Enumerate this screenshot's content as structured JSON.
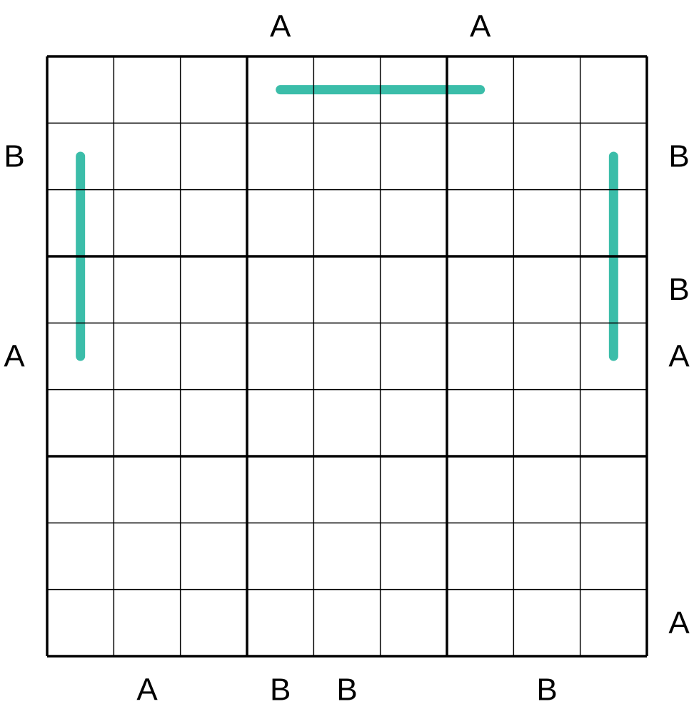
{
  "puzzle": {
    "size": 9,
    "box": 3,
    "line_color": "#3BBDA9",
    "grid_color": "#000000",
    "clues": {
      "top": [
        "",
        "",
        "",
        "A",
        "",
        "",
        "A",
        "",
        ""
      ],
      "bottom": [
        "",
        "A",
        "",
        "B",
        "B",
        "",
        "",
        "B",
        ""
      ],
      "left": [
        "",
        "B",
        "",
        "",
        "A",
        "",
        "",
        "",
        ""
      ],
      "right": [
        "",
        "B",
        "",
        "B",
        "A",
        "",
        "",
        "",
        "A"
      ]
    },
    "lines": [
      [
        [
          0,
          3
        ],
        [
          0,
          6
        ]
      ],
      [
        [
          1,
          0
        ],
        [
          4,
          0
        ]
      ],
      [
        [
          1,
          8
        ],
        [
          4,
          8
        ]
      ]
    ]
  }
}
